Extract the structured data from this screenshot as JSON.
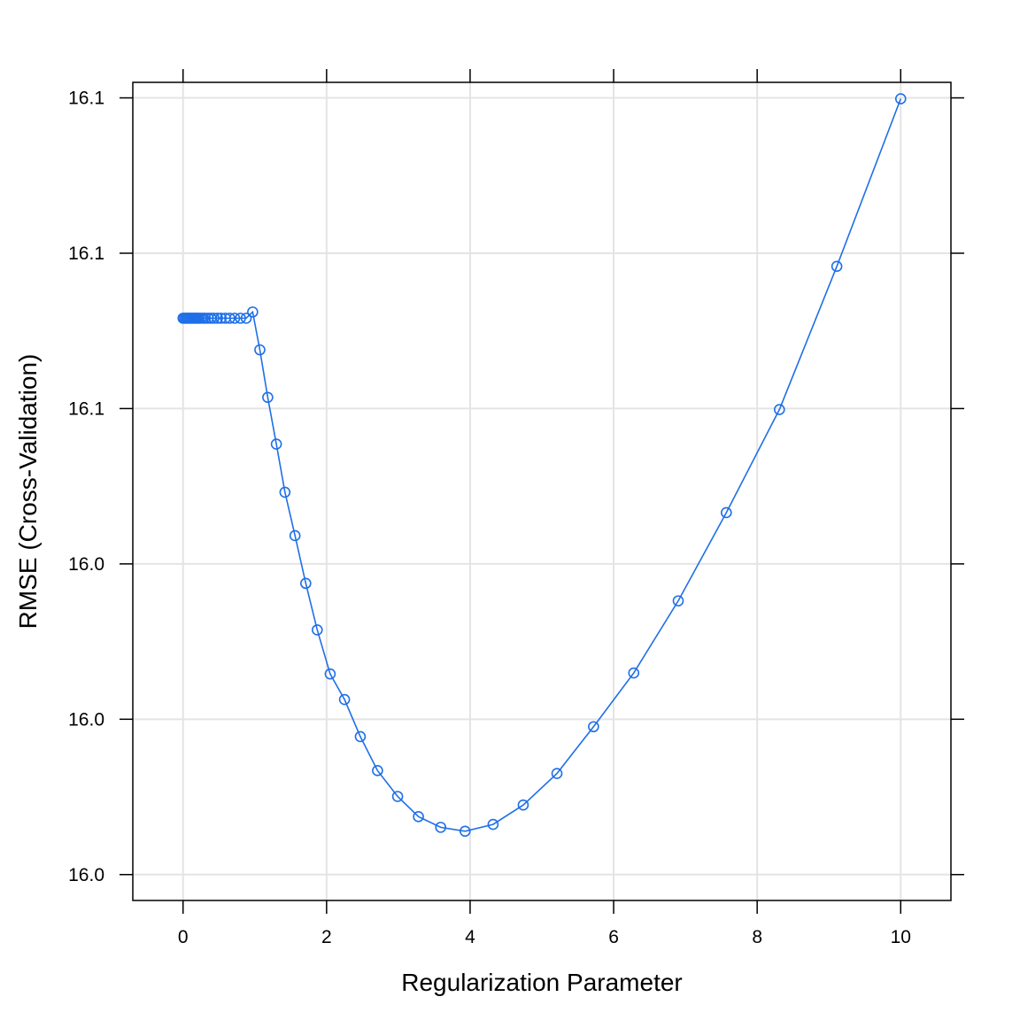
{
  "chart_data": {
    "type": "line",
    "title": "",
    "xlabel": "Regularization Parameter",
    "ylabel": "RMSE (Cross-Validation)",
    "xlim": [
      -0.7,
      10.7
    ],
    "ylim": [
      15.9975,
      16.1555
    ],
    "grid": true,
    "x_ticks": [
      0,
      2,
      4,
      6,
      8,
      10
    ],
    "x_tick_labels": [
      "0",
      "2",
      "4",
      "6",
      "8",
      "10"
    ],
    "y_ticks": [
      16.0025,
      16.0325,
      16.0625,
      16.0925,
      16.1225,
      16.1525
    ],
    "y_tick_labels": [
      "16.0",
      "16.0",
      "16.0",
      "16.1",
      "16.1",
      "16.1"
    ],
    "series": [
      {
        "color": "#1f6fe8",
        "marker": "open-circle",
        "x": [
          0.0,
          0.02,
          0.04,
          0.06,
          0.08,
          0.1,
          0.12,
          0.14,
          0.16,
          0.18,
          0.2,
          0.22,
          0.25,
          0.28,
          0.31,
          0.35,
          0.39,
          0.43,
          0.48,
          0.53,
          0.59,
          0.65,
          0.72,
          0.8,
          0.88,
          0.97,
          1.07,
          1.18,
          1.3,
          1.42,
          1.56,
          1.71,
          1.87,
          2.05,
          2.25,
          2.47,
          2.71,
          2.99,
          3.28,
          3.59,
          3.93,
          4.32,
          4.74,
          5.21,
          5.72,
          6.28,
          6.9,
          7.57,
          8.31,
          9.11,
          10.0
        ],
        "values": [
          16.10995,
          16.10995,
          16.10995,
          16.10995,
          16.10995,
          16.10995,
          16.10995,
          16.10995,
          16.10995,
          16.10995,
          16.10995,
          16.10995,
          16.10995,
          16.10995,
          16.10995,
          16.10995,
          16.10995,
          16.10995,
          16.10995,
          16.10995,
          16.10995,
          16.10995,
          16.10995,
          16.10995,
          16.10995,
          16.11115,
          16.10384,
          16.09466,
          16.08564,
          16.07634,
          16.06796,
          16.05874,
          16.04975,
          16.04124,
          16.03631,
          16.02915,
          16.02258,
          16.01759,
          16.01369,
          16.01163,
          16.01087,
          16.01219,
          16.01593,
          16.02202,
          16.03106,
          16.04143,
          16.05536,
          16.0724,
          16.09231,
          16.11996,
          16.15233
        ]
      }
    ]
  }
}
